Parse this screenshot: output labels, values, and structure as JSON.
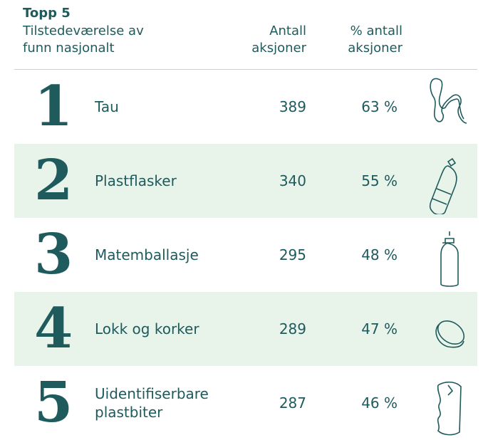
{
  "header": {
    "title": "Topp 5",
    "subtitle_lines": [
      "Tilstedeværelse av",
      "funn nasjonalt"
    ]
  },
  "columns": {
    "count": [
      "Antall",
      "aksjoner"
    ],
    "percent": [
      "% antall",
      "aksjoner"
    ]
  },
  "table": {
    "rows": [
      {
        "rank": "1",
        "name": "Tau",
        "count": "389",
        "percent": "63 %"
      },
      {
        "rank": "2",
        "name": "Plastflasker",
        "count": "340",
        "percent": "55 %"
      },
      {
        "rank": "3",
        "name": "Matemballasje",
        "count": "295",
        "percent": "48 %"
      },
      {
        "rank": "4",
        "name": "Lokk og korker",
        "count": "289",
        "percent": "47 %"
      },
      {
        "rank": "5",
        "name": "Uidentifiserbare plastbiter",
        "count": "287",
        "percent": "46 %"
      }
    ]
  }
}
